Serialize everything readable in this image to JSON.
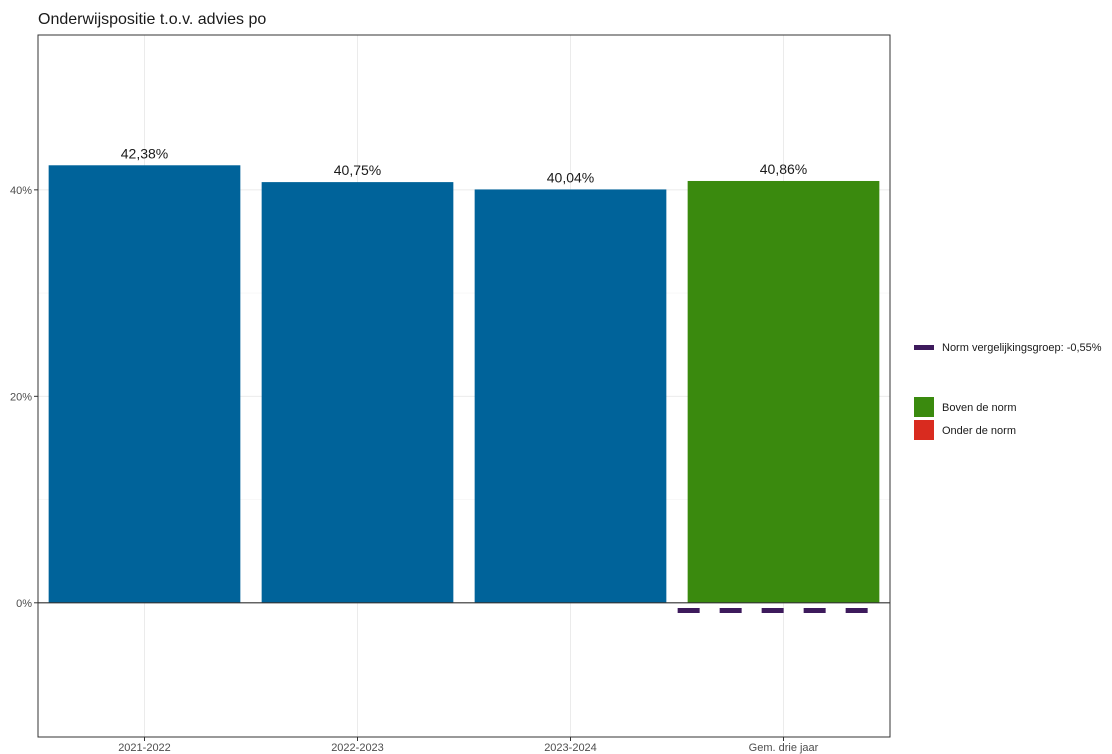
{
  "chart_data": {
    "type": "bar",
    "title": "Onderwijspositie t.o.v. advies po",
    "categories": [
      "2021-2022",
      "2022-2023",
      "2023-2024",
      "Gem. drie jaar"
    ],
    "values": [
      42.38,
      40.75,
      40.04,
      40.86
    ],
    "value_labels": [
      "42,38%",
      "40,75%",
      "40,04%",
      "40,86%"
    ],
    "bar_colors": [
      "#00639a",
      "#00639a",
      "#00639a",
      "#3a8a0e"
    ],
    "ylim": [
      -13,
      55
    ],
    "yticks": [
      0,
      20,
      40
    ],
    "ytick_labels": [
      "0%",
      "20%",
      "40%"
    ],
    "xlabel": "",
    "ylabel": "",
    "grid": true,
    "norm": {
      "value": -0.55,
      "applies_to": "Gem. drie jaar",
      "color": "#3d1a5c",
      "label": "Norm vergelijkingsgroep: -0,55%"
    },
    "legend": {
      "placement": "right",
      "items": [
        {
          "label": "Boven de norm",
          "color": "#3a8a0e"
        },
        {
          "label": "Onder de norm",
          "color": "#d92b1f"
        }
      ]
    }
  }
}
